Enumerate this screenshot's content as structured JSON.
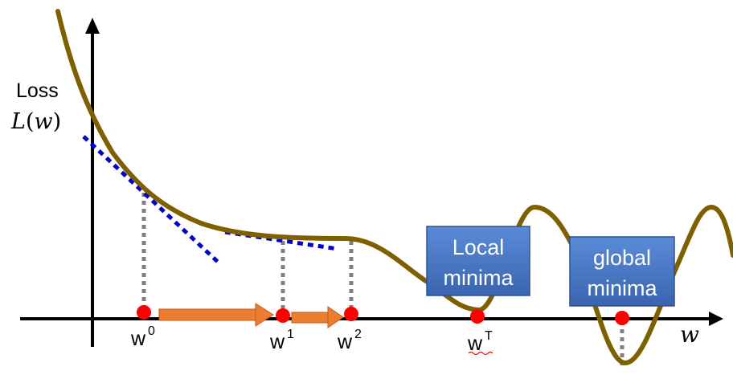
{
  "y_label": {
    "line1": "Loss",
    "func": "L",
    "arg": "w"
  },
  "x_label": "w",
  "points": [
    {
      "base": "w",
      "sup": "0"
    },
    {
      "base": "w",
      "sup": "1"
    },
    {
      "base": "w",
      "sup": "2"
    },
    {
      "base": "w",
      "sup": "T"
    }
  ],
  "boxes": {
    "local": {
      "line1": "Local",
      "line2": "minima"
    },
    "global": {
      "line1": "global",
      "line2": "minima"
    }
  },
  "colors": {
    "curve": "#7f6000",
    "tangent": "#0000cc",
    "arrow": "#ed7d31",
    "point": "#ff0000",
    "box_fill": "#4a76c4",
    "dotted": "#808080",
    "squiggle": "#ff0000"
  }
}
